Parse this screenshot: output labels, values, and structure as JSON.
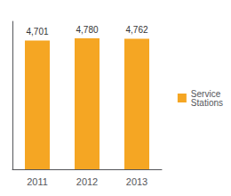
{
  "chart_data": {
    "type": "bar",
    "categories": [
      "2011",
      "2012",
      "2013"
    ],
    "series": [
      {
        "name": "Service\nStations",
        "color": "#F5A623",
        "values": [
          4701,
          4780,
          4762
        ],
        "value_labels": [
          "4,701",
          "4,780",
          "4,762"
        ]
      }
    ],
    "ylim": [
      0,
      5400
    ],
    "grid": false,
    "legend": "right",
    "tick_labels": "x",
    "data_labels": true
  }
}
